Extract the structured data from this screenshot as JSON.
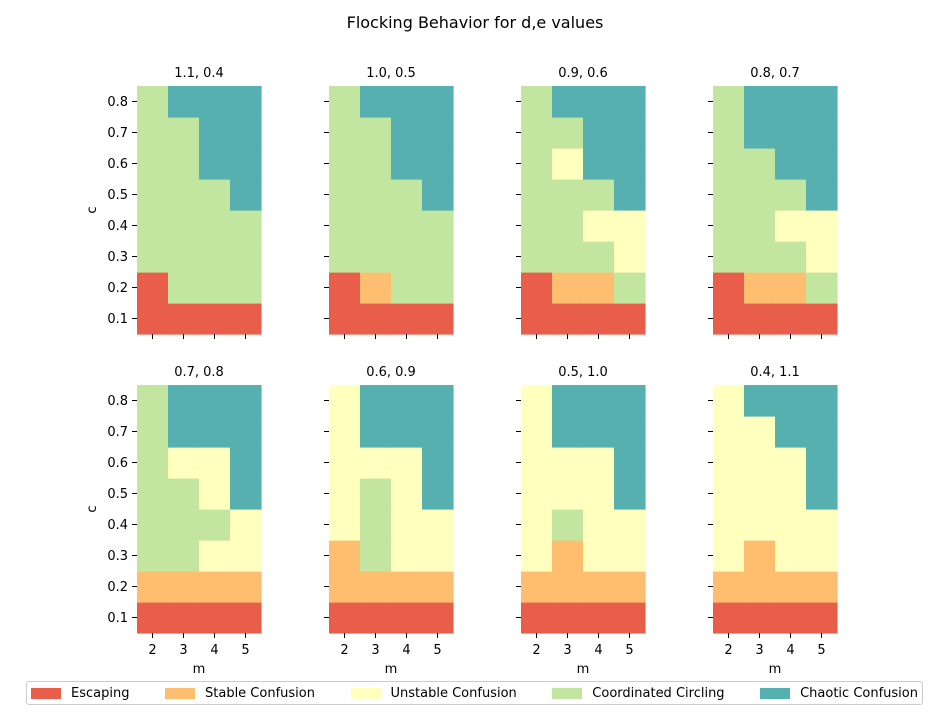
{
  "chart_data": {
    "type": "heatmap",
    "title": "Flocking Behavior for d,e values",
    "xlabel": "m",
    "ylabel": "c",
    "x_categories": [
      "2",
      "3",
      "4",
      "5"
    ],
    "y_categories": [
      "0.1",
      "0.2",
      "0.3",
      "0.4",
      "0.5",
      "0.6",
      "0.7",
      "0.8"
    ],
    "legend": {
      "placement": "bottom",
      "entries": [
        {
          "label": "Escaping",
          "color": "#e95d4b"
        },
        {
          "label": "Stable Confusion",
          "color": "#fdbf6f"
        },
        {
          "label": "Unstable Confusion",
          "color": "#ffffbe"
        },
        {
          "label": "Coordinated Circling",
          "color": "#c2e6a0"
        },
        {
          "label": "Chaotic Confusion",
          "color": "#56b0b0"
        }
      ]
    },
    "subplots": [
      {
        "title": "1.1, 0.4",
        "grid": [
          [
            0,
            0,
            0,
            0
          ],
          [
            0,
            3,
            3,
            3
          ],
          [
            3,
            3,
            3,
            3
          ],
          [
            3,
            3,
            3,
            3
          ],
          [
            3,
            3,
            3,
            4
          ],
          [
            3,
            3,
            4,
            4
          ],
          [
            3,
            3,
            4,
            4
          ],
          [
            3,
            4,
            4,
            4
          ]
        ]
      },
      {
        "title": "1.0, 0.5",
        "grid": [
          [
            0,
            0,
            0,
            0
          ],
          [
            0,
            1,
            3,
            3
          ],
          [
            3,
            3,
            3,
            3
          ],
          [
            3,
            3,
            3,
            3
          ],
          [
            3,
            3,
            3,
            4
          ],
          [
            3,
            3,
            4,
            4
          ],
          [
            3,
            3,
            4,
            4
          ],
          [
            3,
            4,
            4,
            4
          ]
        ]
      },
      {
        "title": "0.9, 0.6",
        "grid": [
          [
            0,
            0,
            0,
            0
          ],
          [
            0,
            1,
            1,
            3
          ],
          [
            3,
            3,
            3,
            2
          ],
          [
            3,
            3,
            2,
            2
          ],
          [
            3,
            3,
            3,
            4
          ],
          [
            3,
            2,
            4,
            4
          ],
          [
            3,
            3,
            4,
            4
          ],
          [
            3,
            4,
            4,
            4
          ]
        ]
      },
      {
        "title": "0.8, 0.7",
        "grid": [
          [
            0,
            0,
            0,
            0
          ],
          [
            0,
            1,
            1,
            3
          ],
          [
            3,
            3,
            3,
            2
          ],
          [
            3,
            3,
            2,
            2
          ],
          [
            3,
            3,
            3,
            4
          ],
          [
            3,
            3,
            4,
            4
          ],
          [
            3,
            4,
            4,
            4
          ],
          [
            3,
            4,
            4,
            4
          ]
        ]
      },
      {
        "title": "0.7, 0.8",
        "grid": [
          [
            0,
            0,
            0,
            0
          ],
          [
            1,
            1,
            1,
            1
          ],
          [
            3,
            3,
            2,
            2
          ],
          [
            3,
            3,
            3,
            2
          ],
          [
            3,
            3,
            2,
            4
          ],
          [
            3,
            2,
            2,
            4
          ],
          [
            3,
            4,
            4,
            4
          ],
          [
            3,
            4,
            4,
            4
          ]
        ]
      },
      {
        "title": "0.6, 0.9",
        "grid": [
          [
            0,
            0,
            0,
            0
          ],
          [
            1,
            1,
            1,
            1
          ],
          [
            1,
            3,
            2,
            2
          ],
          [
            2,
            3,
            2,
            2
          ],
          [
            2,
            3,
            2,
            4
          ],
          [
            2,
            2,
            2,
            4
          ],
          [
            2,
            4,
            4,
            4
          ],
          [
            2,
            4,
            4,
            4
          ]
        ]
      },
      {
        "title": "0.5, 1.0",
        "grid": [
          [
            0,
            0,
            0,
            0
          ],
          [
            1,
            1,
            1,
            1
          ],
          [
            2,
            1,
            2,
            2
          ],
          [
            2,
            3,
            2,
            2
          ],
          [
            2,
            2,
            2,
            4
          ],
          [
            2,
            2,
            2,
            4
          ],
          [
            2,
            4,
            4,
            4
          ],
          [
            2,
            4,
            4,
            4
          ]
        ]
      },
      {
        "title": "0.4, 1.1",
        "grid": [
          [
            0,
            0,
            0,
            0
          ],
          [
            1,
            1,
            1,
            1
          ],
          [
            2,
            1,
            2,
            2
          ],
          [
            2,
            2,
            2,
            2
          ],
          [
            2,
            2,
            2,
            4
          ],
          [
            2,
            2,
            2,
            4
          ],
          [
            2,
            2,
            4,
            4
          ],
          [
            2,
            4,
            4,
            4
          ]
        ]
      }
    ]
  }
}
